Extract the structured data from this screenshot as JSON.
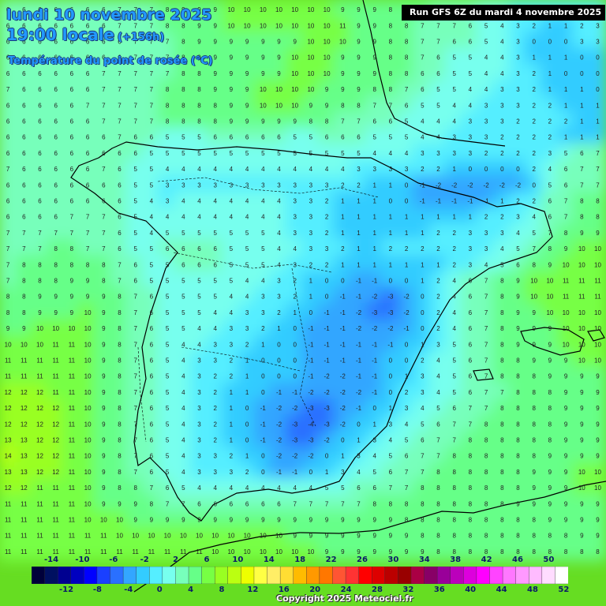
{
  "header": {
    "date": "lundi 10 novembre 2025",
    "time": "19:00 locale",
    "step": "(+156h)",
    "variable": "Température du point de rosée (°C)"
  },
  "run_info": "Run GFS 6Z du mardi 4 novembre 2025",
  "copyright": "Copyright 2025 Meteociel.fr",
  "legend": {
    "labels_top": [
      "-14",
      "-10",
      "-6",
      "-2",
      "2",
      "6",
      "10",
      "14",
      "18",
      "22",
      "26",
      "30",
      "34",
      "38",
      "42",
      "46",
      "50"
    ],
    "labels_bottom": [
      "-12",
      "-8",
      "-4",
      "0",
      "4",
      "8",
      "12",
      "16",
      "20",
      "24",
      "28",
      "32",
      "36",
      "40",
      "44",
      "48",
      "52"
    ],
    "colors": [
      "#00003a",
      "#001060",
      "#000090",
      "#0000c0",
      "#0000ff",
      "#1a40ff",
      "#2a70ff",
      "#33a6ff",
      "#33ccff",
      "#55eeff",
      "#77ffee",
      "#77ffbb",
      "#66ff88",
      "#77ff44",
      "#99ff22",
      "#bbff11",
      "#eeff00",
      "#ffff44",
      "#ffee66",
      "#ffdd33",
      "#ffbb00",
      "#ff9900",
      "#ff7700",
      "#ff5533",
      "#ff3333",
      "#ff0000",
      "#dd0000",
      "#bb0000",
      "#990000",
      "#aa0044",
      "#880066",
      "#990099",
      "#bb00bb",
      "#dd00dd",
      "#ff00ff",
      "#ff44ff",
      "#ff77ff",
      "#ff99ff",
      "#ffbbff",
      "#ffdcff",
      "#ffffff"
    ]
  },
  "grid": {
    "rows": [
      [
        6,
        6,
        6,
        6,
        6,
        6,
        6,
        7,
        7,
        7,
        8,
        9,
        9,
        9,
        10,
        10,
        10,
        10,
        10,
        10,
        10,
        9,
        9,
        9,
        8,
        8,
        8,
        7,
        7,
        6,
        5,
        4,
        3,
        2,
        2,
        2,
        2,
        2
      ],
      [
        6,
        6,
        6,
        6,
        6,
        6,
        6,
        7,
        7,
        7,
        8,
        8,
        9,
        9,
        10,
        10,
        10,
        10,
        10,
        10,
        10,
        11,
        9,
        9,
        8,
        8,
        7,
        7,
        7,
        6,
        5,
        4,
        3,
        2,
        1,
        1,
        2,
        3
      ],
      [
        6,
        6,
        6,
        6,
        6,
        6,
        6,
        6,
        7,
        7,
        7,
        8,
        9,
        9,
        9,
        9,
        9,
        9,
        9,
        10,
        10,
        10,
        9,
        9,
        8,
        8,
        7,
        7,
        6,
        6,
        5,
        4,
        3,
        0,
        0,
        0,
        3,
        3
      ],
      [
        6,
        6,
        6,
        6,
        6,
        6,
        6,
        6,
        7,
        7,
        7,
        8,
        9,
        9,
        9,
        9,
        9,
        9,
        10,
        10,
        10,
        9,
        9,
        9,
        8,
        8,
        7,
        6,
        5,
        5,
        4,
        4,
        3,
        1,
        1,
        1,
        0,
        0
      ],
      [
        6,
        6,
        6,
        6,
        6,
        6,
        7,
        7,
        7,
        7,
        7,
        8,
        8,
        9,
        9,
        9,
        9,
        9,
        10,
        10,
        10,
        9,
        9,
        9,
        8,
        8,
        6,
        6,
        5,
        5,
        4,
        4,
        3,
        2,
        1,
        0,
        0,
        0
      ],
      [
        7,
        6,
        6,
        6,
        6,
        6,
        7,
        7,
        7,
        7,
        8,
        8,
        8,
        9,
        9,
        9,
        10,
        10,
        10,
        10,
        9,
        9,
        9,
        8,
        8,
        7,
        6,
        5,
        5,
        4,
        4,
        3,
        3,
        2,
        1,
        1,
        1,
        0
      ],
      [
        6,
        6,
        6,
        6,
        6,
        7,
        7,
        7,
        7,
        7,
        8,
        8,
        8,
        8,
        9,
        9,
        10,
        10,
        10,
        9,
        9,
        8,
        8,
        7,
        7,
        6,
        5,
        5,
        4,
        4,
        3,
        3,
        3,
        2,
        2,
        1,
        1,
        1
      ],
      [
        6,
        6,
        6,
        6,
        6,
        6,
        7,
        7,
        7,
        7,
        8,
        8,
        8,
        8,
        9,
        9,
        9,
        9,
        9,
        8,
        8,
        7,
        7,
        6,
        6,
        5,
        4,
        4,
        4,
        3,
        3,
        3,
        2,
        2,
        2,
        2,
        1,
        1
      ],
      [
        6,
        6,
        6,
        6,
        6,
        6,
        6,
        7,
        6,
        6,
        5,
        5,
        5,
        6,
        6,
        6,
        6,
        6,
        5,
        5,
        6,
        6,
        6,
        5,
        5,
        5,
        4,
        4,
        3,
        3,
        3,
        2,
        2,
        2,
        2,
        1,
        1,
        1
      ],
      [
        6,
        6,
        6,
        6,
        6,
        6,
        6,
        6,
        6,
        5,
        5,
        5,
        5,
        5,
        5,
        5,
        5,
        5,
        5,
        5,
        5,
        5,
        5,
        4,
        4,
        4,
        3,
        3,
        3,
        3,
        2,
        2,
        2,
        2,
        3,
        5,
        6,
        7
      ],
      [
        7,
        6,
        6,
        6,
        6,
        6,
        7,
        6,
        5,
        5,
        4,
        4,
        4,
        4,
        4,
        4,
        4,
        4,
        4,
        4,
        4,
        4,
        3,
        3,
        3,
        3,
        2,
        2,
        1,
        0,
        0,
        0,
        0,
        2,
        4,
        6,
        7,
        7
      ],
      [
        6,
        6,
        6,
        6,
        6,
        6,
        6,
        6,
        5,
        5,
        3,
        3,
        3,
        3,
        3,
        3,
        3,
        3,
        3,
        3,
        3,
        2,
        2,
        1,
        1,
        0,
        -1,
        -2,
        -2,
        -2,
        -2,
        -2,
        -2,
        0,
        5,
        6,
        7,
        7
      ],
      [
        6,
        6,
        6,
        6,
        6,
        6,
        6,
        6,
        5,
        4,
        3,
        4,
        4,
        4,
        4,
        4,
        4,
        4,
        3,
        3,
        2,
        1,
        1,
        1,
        0,
        0,
        -1,
        -1,
        -1,
        -1,
        -1,
        1,
        2,
        2,
        6,
        7,
        8,
        8
      ],
      [
        6,
        6,
        6,
        6,
        7,
        7,
        7,
        6,
        5,
        4,
        4,
        4,
        4,
        4,
        4,
        4,
        4,
        4,
        3,
        3,
        2,
        1,
        1,
        1,
        1,
        1,
        1,
        1,
        1,
        1,
        2,
        2,
        3,
        4,
        6,
        7,
        8,
        8
      ],
      [
        7,
        7,
        7,
        7,
        7,
        7,
        7,
        6,
        5,
        4,
        5,
        5,
        5,
        5,
        5,
        5,
        5,
        4,
        3,
        3,
        2,
        1,
        1,
        1,
        1,
        1,
        1,
        2,
        2,
        3,
        3,
        3,
        4,
        5,
        7,
        8,
        9,
        9
      ],
      [
        7,
        7,
        7,
        8,
        8,
        7,
        7,
        6,
        5,
        5,
        6,
        6,
        6,
        6,
        5,
        5,
        5,
        4,
        4,
        3,
        3,
        2,
        1,
        1,
        2,
        2,
        2,
        2,
        2,
        3,
        3,
        4,
        5,
        7,
        8,
        9,
        10,
        10
      ],
      [
        7,
        8,
        8,
        8,
        8,
        8,
        8,
        7,
        6,
        5,
        5,
        6,
        6,
        6,
        5,
        5,
        5,
        4,
        3,
        2,
        2,
        1,
        1,
        1,
        1,
        1,
        1,
        1,
        2,
        3,
        4,
        5,
        6,
        8,
        9,
        10,
        10,
        10
      ],
      [
        7,
        8,
        8,
        8,
        9,
        9,
        8,
        7,
        6,
        5,
        5,
        5,
        5,
        5,
        5,
        4,
        4,
        3,
        2,
        1,
        0,
        0,
        -1,
        -1,
        0,
        0,
        1,
        2,
        4,
        6,
        7,
        8,
        9,
        10,
        10,
        11,
        11,
        11
      ],
      [
        8,
        8,
        9,
        9,
        9,
        9,
        9,
        8,
        7,
        6,
        5,
        5,
        5,
        5,
        4,
        4,
        3,
        3,
        2,
        1,
        0,
        -1,
        -1,
        -2,
        -3,
        -2,
        0,
        2,
        4,
        6,
        7,
        8,
        9,
        10,
        10,
        11,
        11,
        11
      ],
      [
        8,
        8,
        9,
        9,
        9,
        10,
        9,
        8,
        7,
        6,
        5,
        5,
        5,
        4,
        4,
        3,
        3,
        2,
        1,
        0,
        -1,
        -1,
        -2,
        -3,
        -3,
        -2,
        0,
        2,
        4,
        6,
        7,
        8,
        9,
        9,
        10,
        10,
        10,
        10
      ],
      [
        9,
        9,
        10,
        10,
        10,
        10,
        9,
        8,
        7,
        6,
        5,
        5,
        4,
        4,
        3,
        3,
        2,
        1,
        0,
        -1,
        -1,
        -1,
        -2,
        -2,
        -2,
        -1,
        0,
        2,
        4,
        6,
        7,
        8,
        9,
        9,
        9,
        10,
        10,
        10
      ],
      [
        10,
        10,
        10,
        11,
        11,
        10,
        9,
        8,
        7,
        6,
        5,
        4,
        4,
        3,
        3,
        2,
        1,
        0,
        0,
        -1,
        -1,
        -1,
        -1,
        -1,
        -1,
        0,
        1,
        3,
        5,
        6,
        7,
        8,
        9,
        9,
        9,
        10,
        10,
        10
      ],
      [
        11,
        11,
        11,
        11,
        11,
        10,
        9,
        8,
        7,
        6,
        5,
        4,
        3,
        3,
        2,
        1,
        0,
        0,
        0,
        -1,
        -1,
        -1,
        -1,
        -1,
        0,
        0,
        2,
        4,
        5,
        6,
        7,
        8,
        8,
        9,
        9,
        9,
        10,
        10
      ],
      [
        11,
        11,
        11,
        11,
        11,
        10,
        9,
        8,
        7,
        6,
        5,
        4,
        3,
        2,
        2,
        1,
        0,
        0,
        0,
        -1,
        -2,
        -2,
        -1,
        -1,
        0,
        1,
        3,
        4,
        5,
        6,
        7,
        8,
        8,
        8,
        9,
        9,
        9,
        9
      ],
      [
        12,
        12,
        12,
        11,
        11,
        10,
        9,
        8,
        7,
        6,
        5,
        4,
        3,
        2,
        1,
        1,
        0,
        -1,
        -1,
        -2,
        -2,
        -2,
        -2,
        -1,
        0,
        2,
        3,
        4,
        5,
        6,
        7,
        7,
        8,
        8,
        8,
        9,
        9,
        9
      ],
      [
        12,
        12,
        12,
        12,
        11,
        10,
        9,
        8,
        7,
        6,
        5,
        4,
        3,
        2,
        1,
        0,
        -1,
        -2,
        -2,
        -3,
        -3,
        -2,
        -1,
        0,
        1,
        3,
        4,
        5,
        6,
        7,
        7,
        8,
        8,
        8,
        8,
        9,
        9,
        9
      ],
      [
        12,
        12,
        12,
        12,
        11,
        10,
        9,
        8,
        7,
        6,
        5,
        4,
        3,
        2,
        1,
        0,
        -1,
        -2,
        -3,
        -4,
        -3,
        -2,
        0,
        1,
        3,
        4,
        5,
        6,
        7,
        7,
        8,
        8,
        8,
        8,
        8,
        9,
        9,
        9
      ],
      [
        13,
        13,
        12,
        12,
        11,
        10,
        9,
        8,
        7,
        6,
        5,
        4,
        3,
        2,
        1,
        0,
        -1,
        -2,
        -3,
        -3,
        -2,
        0,
        1,
        3,
        4,
        5,
        6,
        7,
        7,
        8,
        8,
        8,
        8,
        8,
        8,
        9,
        9,
        9
      ],
      [
        14,
        13,
        12,
        12,
        11,
        10,
        9,
        8,
        7,
        6,
        5,
        4,
        3,
        3,
        2,
        1,
        0,
        -2,
        -2,
        -2,
        0,
        1,
        3,
        4,
        5,
        6,
        7,
        7,
        8,
        8,
        8,
        8,
        8,
        8,
        9,
        9,
        9,
        9
      ],
      [
        13,
        13,
        12,
        12,
        11,
        10,
        9,
        8,
        7,
        6,
        5,
        4,
        3,
        3,
        3,
        2,
        0,
        -1,
        -1,
        0,
        1,
        3,
        4,
        5,
        6,
        7,
        7,
        8,
        8,
        8,
        8,
        8,
        8,
        9,
        9,
        9,
        10,
        10
      ],
      [
        12,
        12,
        11,
        11,
        11,
        10,
        9,
        8,
        8,
        7,
        6,
        5,
        4,
        4,
        4,
        4,
        4,
        4,
        4,
        4,
        5,
        5,
        6,
        6,
        7,
        7,
        8,
        8,
        8,
        8,
        8,
        8,
        8,
        9,
        9,
        9,
        10,
        10
      ],
      [
        11,
        11,
        11,
        11,
        11,
        10,
        9,
        9,
        9,
        8,
        7,
        7,
        6,
        6,
        6,
        6,
        6,
        6,
        7,
        7,
        7,
        7,
        7,
        8,
        8,
        8,
        8,
        8,
        8,
        8,
        8,
        8,
        9,
        9,
        9,
        9,
        9,
        9
      ],
      [
        11,
        11,
        11,
        11,
        11,
        10,
        10,
        10,
        9,
        9,
        9,
        9,
        9,
        9,
        9,
        9,
        9,
        9,
        9,
        9,
        9,
        9,
        9,
        9,
        9,
        8,
        8,
        8,
        8,
        8,
        8,
        8,
        8,
        8,
        9,
        9,
        9,
        9
      ],
      [
        11,
        11,
        11,
        11,
        11,
        11,
        11,
        10,
        10,
        10,
        10,
        10,
        10,
        10,
        10,
        10,
        10,
        10,
        9,
        9,
        9,
        9,
        9,
        9,
        9,
        9,
        8,
        8,
        8,
        8,
        8,
        8,
        8,
        8,
        8,
        8,
        9,
        9
      ],
      [
        11,
        11,
        11,
        11,
        11,
        11,
        11,
        11,
        11,
        11,
        11,
        11,
        11,
        10,
        10,
        10,
        10,
        10,
        10,
        10,
        9,
        9,
        9,
        9,
        9,
        9,
        9,
        8,
        8,
        8,
        8,
        8,
        8,
        8,
        8,
        8,
        8,
        8
      ]
    ]
  }
}
